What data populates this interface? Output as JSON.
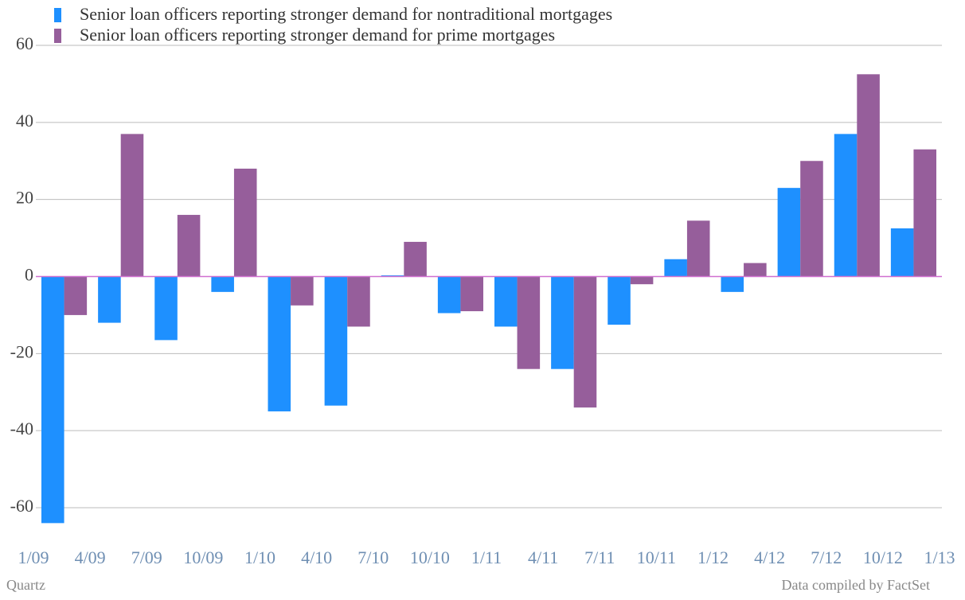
{
  "chart_data": {
    "type": "bar",
    "categories": [
      "1/09",
      "4/09",
      "7/09",
      "10/09",
      "1/10",
      "4/10",
      "7/10",
      "10/10",
      "1/11",
      "4/11",
      "7/11",
      "10/11",
      "1/12",
      "4/12",
      "7/12",
      "10/12",
      "1/13"
    ],
    "series": [
      {
        "name": "Senior loan officers reporting stronger demand for nontraditional mortgages",
        "color": "#1e90ff",
        "values": [
          -64,
          -12,
          -16.5,
          -4,
          -35,
          -33.5,
          0.3,
          -9.5,
          -13,
          -24,
          -12.5,
          4.5,
          -4,
          23,
          37,
          12.5,
          null
        ]
      },
      {
        "name": "Senior loan officers reporting stronger demand for prime mortgages",
        "color": "#965e9b",
        "values": [
          -10,
          37,
          16,
          28,
          -7.5,
          -13,
          9,
          -9,
          -24,
          -34,
          -2,
          14.5,
          3.5,
          30,
          52.5,
          33,
          null
        ]
      }
    ],
    "ylim": [
      -60,
      60
    ],
    "yticks": [
      -60,
      -40,
      -20,
      0,
      20,
      40,
      60
    ],
    "grid": true,
    "source": "Data compiled by FactSet",
    "credit": "Quartz"
  }
}
